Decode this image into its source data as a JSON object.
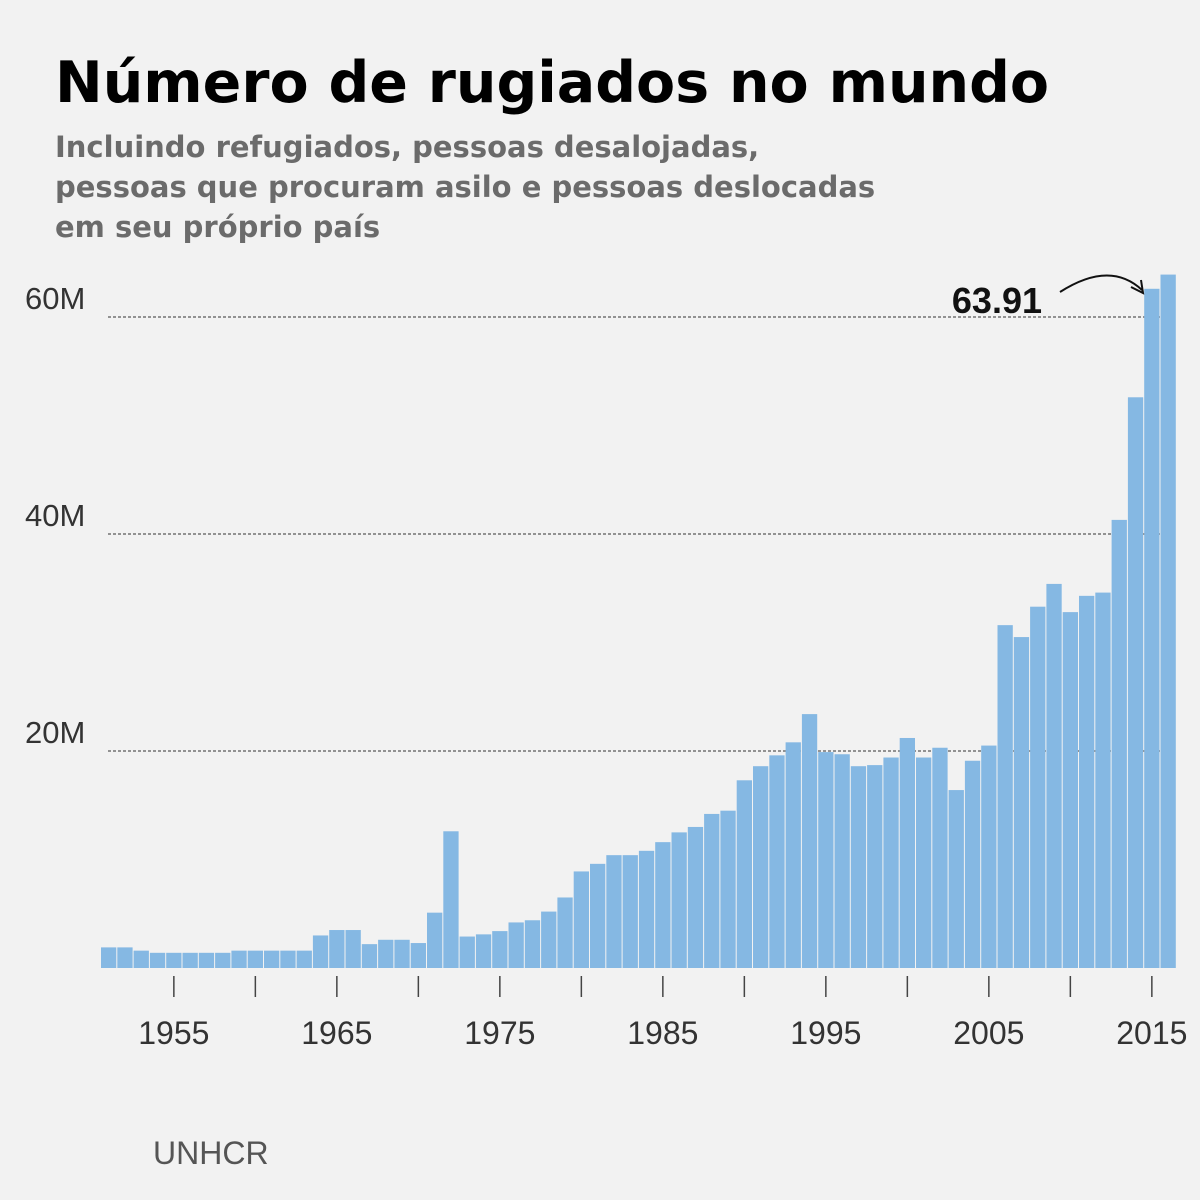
{
  "title": "Número de rugiados no mundo",
  "subtitle_lines": [
    "Incluindo refugiados, pessoas desalojadas,",
    "pessoas que procuram asilo e pessoas deslocadas",
    "em seu próprio país"
  ],
  "source": "UNHCR",
  "colors": {
    "bar": "#85b8e3",
    "background": "#f2f2f2",
    "grid": "#333333",
    "axis_text": "#333333"
  },
  "chart_data": {
    "type": "bar",
    "title": "Número de rugiados no mundo",
    "xlabel": "",
    "ylabel": "",
    "ylim": [
      0,
      64
    ],
    "y_unit": "M",
    "yticks": [
      20,
      40,
      60
    ],
    "ytick_labels": [
      "20M",
      "40M",
      "60M"
    ],
    "xticks": [
      1955,
      1965,
      1975,
      1985,
      1995,
      2005,
      2015
    ],
    "xtick_labels": [
      "1955",
      "1965",
      "1975",
      "1985",
      "1995",
      "2005",
      "2015"
    ],
    "grid": "horizontal dotted",
    "annotation": {
      "text": "63.91",
      "year": 2016
    },
    "categories": [
      1951,
      1952,
      1953,
      1954,
      1955,
      1956,
      1957,
      1958,
      1959,
      1960,
      1961,
      1962,
      1963,
      1964,
      1965,
      1966,
      1967,
      1968,
      1969,
      1970,
      1971,
      1972,
      1973,
      1974,
      1975,
      1976,
      1977,
      1978,
      1979,
      1980,
      1981,
      1982,
      1983,
      1984,
      1985,
      1986,
      1987,
      1988,
      1989,
      1990,
      1991,
      1992,
      1993,
      1994,
      1995,
      1996,
      1997,
      1998,
      1999,
      2000,
      2001,
      2002,
      2003,
      2004,
      2005,
      2006,
      2007,
      2008,
      2009,
      2010,
      2011,
      2012,
      2013,
      2014,
      2015,
      2016
    ],
    "values": [
      1.9,
      1.9,
      1.6,
      1.4,
      1.4,
      1.4,
      1.4,
      1.4,
      1.6,
      1.6,
      1.6,
      1.6,
      1.6,
      3.0,
      3.5,
      3.5,
      2.2,
      2.6,
      2.6,
      2.3,
      5.1,
      12.6,
      2.9,
      3.1,
      3.4,
      4.2,
      4.4,
      5.2,
      6.5,
      8.9,
      9.6,
      10.4,
      10.4,
      10.8,
      11.6,
      12.5,
      13.0,
      14.2,
      14.5,
      17.3,
      18.6,
      19.6,
      20.8,
      23.4,
      19.9,
      19.7,
      18.6,
      18.7,
      19.4,
      21.2,
      19.4,
      20.3,
      16.4,
      19.1,
      20.5,
      31.6,
      30.5,
      33.3,
      35.4,
      32.8,
      34.3,
      34.6,
      41.3,
      52.6,
      62.6,
      63.91
    ]
  }
}
